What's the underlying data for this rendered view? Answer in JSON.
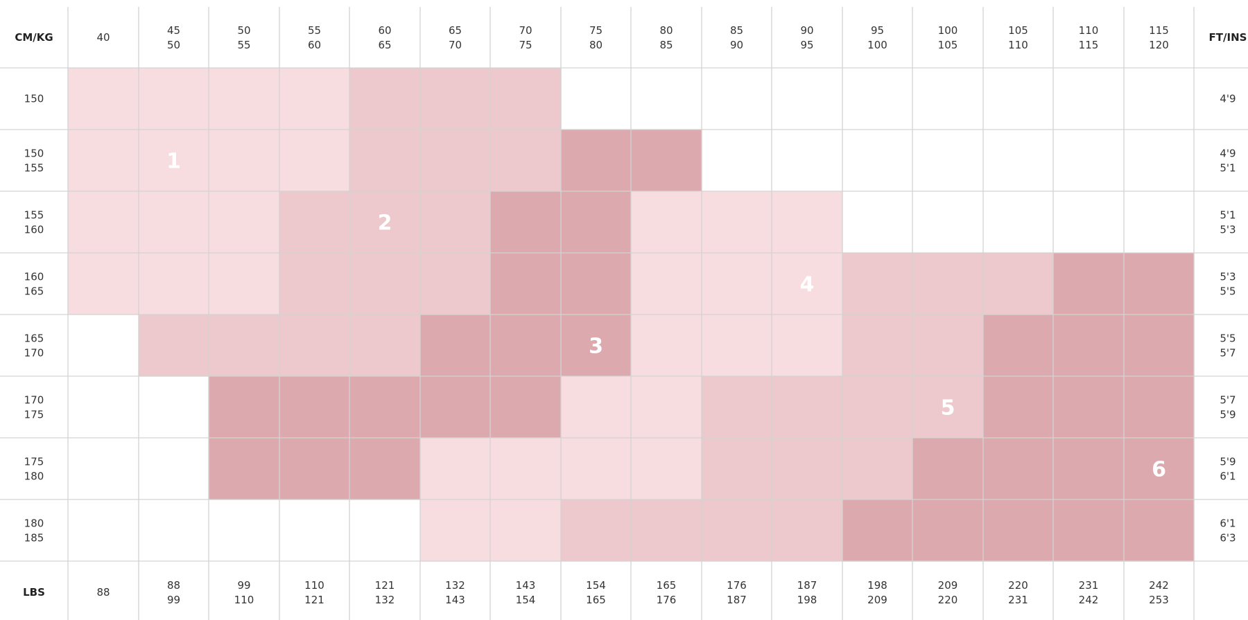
{
  "table": {
    "corner_top_left": "CM/KG",
    "corner_top_right": "FT/INS",
    "corner_bottom_left": "LBS",
    "kg_columns": [
      [
        "40"
      ],
      [
        "45",
        "50"
      ],
      [
        "50",
        "55"
      ],
      [
        "55",
        "60"
      ],
      [
        "60",
        "65"
      ],
      [
        "65",
        "70"
      ],
      [
        "70",
        "75"
      ],
      [
        "75",
        "80"
      ],
      [
        "80",
        "85"
      ],
      [
        "85",
        "90"
      ],
      [
        "90",
        "95"
      ],
      [
        "95",
        "100"
      ],
      [
        "100",
        "105"
      ],
      [
        "105",
        "110"
      ],
      [
        "110",
        "115"
      ],
      [
        "115",
        "120"
      ]
    ],
    "cm_rows": [
      [
        "150"
      ],
      [
        "150",
        "155"
      ],
      [
        "155",
        "160"
      ],
      [
        "160",
        "165"
      ],
      [
        "165",
        "170"
      ],
      [
        "170",
        "175"
      ],
      [
        "175",
        "180"
      ],
      [
        "180",
        "185"
      ]
    ],
    "ftins_rows": [
      [
        "4'9"
      ],
      [
        "4'9",
        "5'1"
      ],
      [
        "5'1",
        "5'3"
      ],
      [
        "5'3",
        "5'5"
      ],
      [
        "5'5",
        "5'7"
      ],
      [
        "5'7",
        "5'9"
      ],
      [
        "5'9",
        "6'1"
      ],
      [
        "6'1",
        "6'3"
      ]
    ],
    "lbs_columns": [
      [
        "88"
      ],
      [
        "88",
        "99"
      ],
      [
        "99",
        "110"
      ],
      [
        "110",
        "121"
      ],
      [
        "121",
        "132"
      ],
      [
        "132",
        "143"
      ],
      [
        "143",
        "154"
      ],
      [
        "154",
        "165"
      ],
      [
        "165",
        "176"
      ],
      [
        "176",
        "187"
      ],
      [
        "187",
        "198"
      ],
      [
        "198",
        "209"
      ],
      [
        "209",
        "220"
      ],
      [
        "220",
        "231"
      ],
      [
        "231",
        "242"
      ],
      [
        "242",
        "253"
      ]
    ]
  },
  "size_zones": {
    "colors": {
      "1": "#f8dde0",
      "2": "#edc8cc",
      "3": "#dcaaae",
      "4": "#f8dde0",
      "5": "#edc8cc",
      "6": "#dcaaae"
    },
    "grid": [
      [
        1,
        1,
        1,
        1,
        2,
        2,
        2,
        0,
        0,
        0,
        0,
        0,
        0,
        0,
        0,
        0
      ],
      [
        1,
        1,
        1,
        1,
        2,
        2,
        2,
        3,
        3,
        0,
        0,
        0,
        0,
        0,
        0,
        0
      ],
      [
        1,
        1,
        1,
        2,
        2,
        2,
        3,
        3,
        4,
        4,
        4,
        0,
        0,
        0,
        0,
        0
      ],
      [
        1,
        1,
        1,
        2,
        2,
        2,
        3,
        3,
        4,
        4,
        4,
        5,
        5,
        5,
        6,
        6
      ],
      [
        0,
        2,
        2,
        2,
        2,
        3,
        3,
        3,
        4,
        4,
        4,
        5,
        5,
        6,
        6,
        6
      ],
      [
        0,
        0,
        3,
        3,
        3,
        3,
        3,
        4,
        4,
        5,
        5,
        5,
        5,
        6,
        6,
        6
      ],
      [
        0,
        0,
        3,
        3,
        3,
        4,
        4,
        4,
        4,
        5,
        5,
        5,
        6,
        6,
        6,
        6
      ],
      [
        0,
        0,
        0,
        0,
        0,
        4,
        4,
        5,
        5,
        5,
        5,
        6,
        6,
        6,
        6,
        6
      ]
    ],
    "labels": [
      {
        "size": "1",
        "row": 1,
        "col": 1
      },
      {
        "size": "2",
        "row": 2,
        "col": 4
      },
      {
        "size": "3",
        "row": 4,
        "col": 7
      },
      {
        "size": "4",
        "row": 3,
        "col": 10
      },
      {
        "size": "5",
        "row": 5,
        "col": 12
      },
      {
        "size": "6",
        "row": 6,
        "col": 15
      }
    ]
  }
}
